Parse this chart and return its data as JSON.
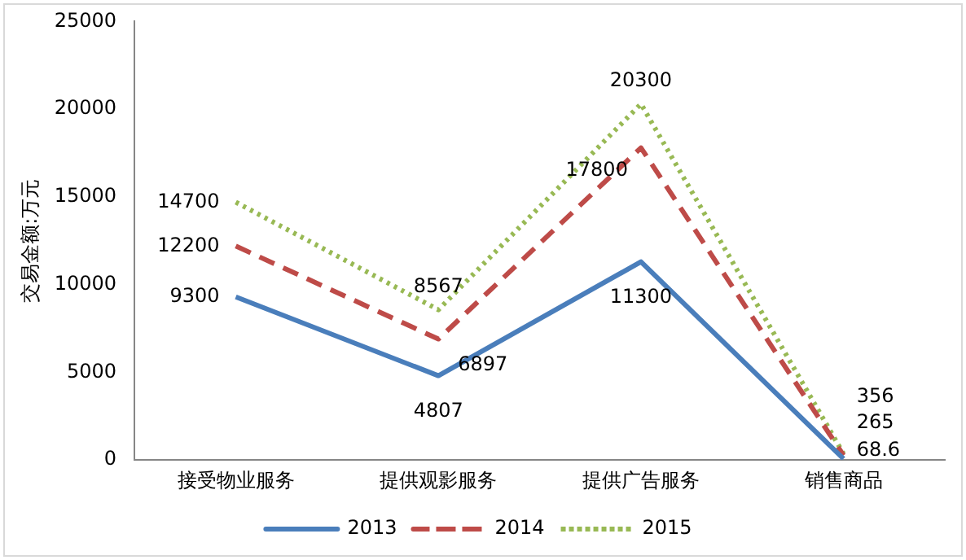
{
  "chart_data": {
    "type": "line",
    "ylabel": "交易金额:万元",
    "categories": [
      "接受物业服务",
      "提供观影服务",
      "提供广告服务",
      "销售商品"
    ],
    "series": [
      {
        "name": "2013",
        "color": "#4a7ebb",
        "line_style": "solid",
        "values": [
          9300,
          4807,
          11300,
          68.6
        ]
      },
      {
        "name": "2014",
        "color": "#be4b48",
        "line_style": "dashed",
        "values": [
          12200,
          6897,
          17800,
          265
        ]
      },
      {
        "name": "2015",
        "color": "#98b954",
        "line_style": "dotted",
        "values": [
          14700,
          8567,
          20300,
          356
        ]
      }
    ],
    "ylim": [
      0,
      25000
    ],
    "yticks": [
      0,
      5000,
      10000,
      15000,
      20000,
      25000
    ],
    "grid": false,
    "legend": "bottom",
    "marker": "none",
    "data_labels": true
  }
}
